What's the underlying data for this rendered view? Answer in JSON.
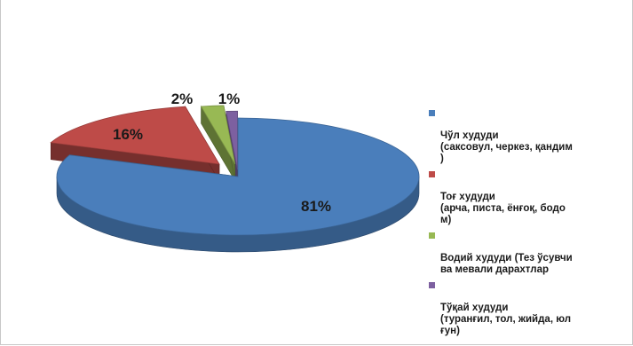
{
  "colors": {
    "blue": "#4a7ebb",
    "red": "#be4b48",
    "green": "#98b954",
    "purple": "#7d60a0"
  },
  "chart_data": {
    "type": "pie",
    "title": "",
    "slices": [
      {
        "label": "Чўл худуди\n(саксовул, черкез, қандим\n)",
        "value": 81,
        "value_label": "81%",
        "color": "#4a7ebb"
      },
      {
        "label": "Тоғ худуди\n(арча, писта, ёнғоқ, бодо\nм)",
        "value": 16,
        "value_label": "16%",
        "color": "#be4b48"
      },
      {
        "label": "Водий худуди (Тез ўсувчи\nва мевали дарахтлар",
        "value": 2,
        "value_label": "2%",
        "color": "#98b954"
      },
      {
        "label": "Тўқай худуди\n(туранғил, тол, жийда, юл\nғун)",
        "value": 1,
        "value_label": "1%",
        "color": "#7d60a0"
      }
    ],
    "legend_position": "right"
  }
}
